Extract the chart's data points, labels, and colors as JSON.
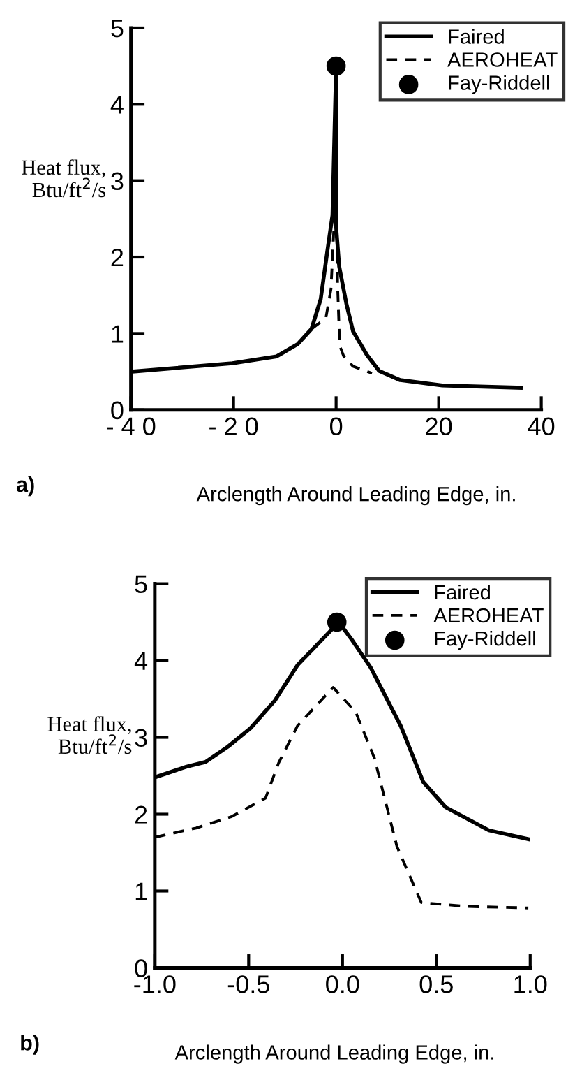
{
  "chart_data": [
    {
      "type": "line",
      "xlabel": "Arclength Around Leading Edge, in.",
      "ylabel": "Heat flux,\nBtu/ft$^{2}$/s",
      "annotations": [
        "a)"
      ],
      "xlim": [
        -40,
        40
      ],
      "ylim": [
        0,
        5
      ],
      "xticks": [
        {
          "value": -40,
          "label": "- 4 0"
        },
        {
          "value": -20,
          "label": "- 2 0"
        },
        0,
        20,
        40
      ],
      "yticks": [
        0,
        1,
        2,
        3,
        4,
        5
      ],
      "grid": false,
      "legend": "top right",
      "series": [
        {
          "name": "Faired",
          "color": "#000000",
          "line_style": "solid",
          "x": [
            -40,
            -20.2,
            -11.6,
            -7.5,
            -4.8,
            -3,
            -1.6,
            -0.7,
            0,
            0,
            0.6,
            2,
            3.3,
            6,
            8.4,
            12.5,
            20.7,
            36
          ],
          "values": [
            0.5,
            0.61,
            0.7,
            0.86,
            1.06,
            1.45,
            2.13,
            2.55,
            4.5,
            2.4,
            1.88,
            1.39,
            1.03,
            0.72,
            0.51,
            0.39,
            0.32,
            0.29
          ]
        },
        {
          "name": "AEROHEAT",
          "color": "#000000",
          "line_style": "dashed",
          "x": [
            -4.8,
            -2,
            -1,
            -0.4,
            0,
            0.3,
            0.7,
            1.5,
            3.3,
            7
          ],
          "values": [
            1.06,
            1.2,
            1.58,
            2.43,
            3.0,
            1.6,
            0.84,
            0.7,
            0.57,
            0.48
          ]
        },
        {
          "name": "Fay-Riddell",
          "type": "scatter",
          "marker": "circle",
          "color": "#000000",
          "x": [
            0
          ],
          "values": [
            4.5
          ]
        }
      ]
    },
    {
      "type": "line",
      "xlabel": "Arclength Around Leading Edge, in.",
      "ylabel": "Heat flux,\nBtu/ft$^{2}$/s",
      "annotations": [
        "b)"
      ],
      "xlim": [
        -1,
        1
      ],
      "ylim": [
        0,
        5
      ],
      "xticks": [
        {
          "value": -1,
          "label": "-1.0"
        },
        {
          "value": -0.5,
          "label": "-0.5"
        },
        {
          "value": 0,
          "label": "0.0"
        },
        0.5,
        {
          "value": 1,
          "label": "1.0"
        }
      ],
      "yticks": [
        0,
        1,
        2,
        3,
        4,
        5
      ],
      "grid": false,
      "legend": "top right",
      "series": [
        {
          "name": "Faired",
          "color": "#000000",
          "line_style": "solid",
          "x": [
            -1.0,
            -0.83,
            -0.73,
            -0.61,
            -0.49,
            -0.36,
            -0.24,
            -0.11,
            -0.02,
            0.05,
            0.15,
            0.31,
            0.43,
            0.55,
            0.78,
            1.0
          ],
          "values": [
            2.48,
            2.62,
            2.68,
            2.88,
            3.12,
            3.48,
            3.94,
            4.27,
            4.5,
            4.27,
            3.91,
            3.15,
            2.42,
            2.09,
            1.79,
            1.67
          ]
        },
        {
          "name": "AEROHEAT",
          "color": "#000000",
          "line_style": "dashed",
          "x": [
            -1.0,
            -0.78,
            -0.59,
            -0.41,
            -0.34,
            -0.24,
            -0.05,
            0.07,
            0.17,
            0.29,
            0.42,
            0.66,
            0.99
          ],
          "values": [
            1.7,
            1.82,
            1.97,
            2.21,
            2.67,
            3.15,
            3.65,
            3.33,
            2.73,
            1.58,
            0.85,
            0.8,
            0.78
          ]
        },
        {
          "name": "Fay-Riddell",
          "type": "scatter",
          "marker": "circle",
          "color": "#000000",
          "x": [
            -0.03
          ],
          "values": [
            4.5
          ]
        }
      ]
    }
  ]
}
